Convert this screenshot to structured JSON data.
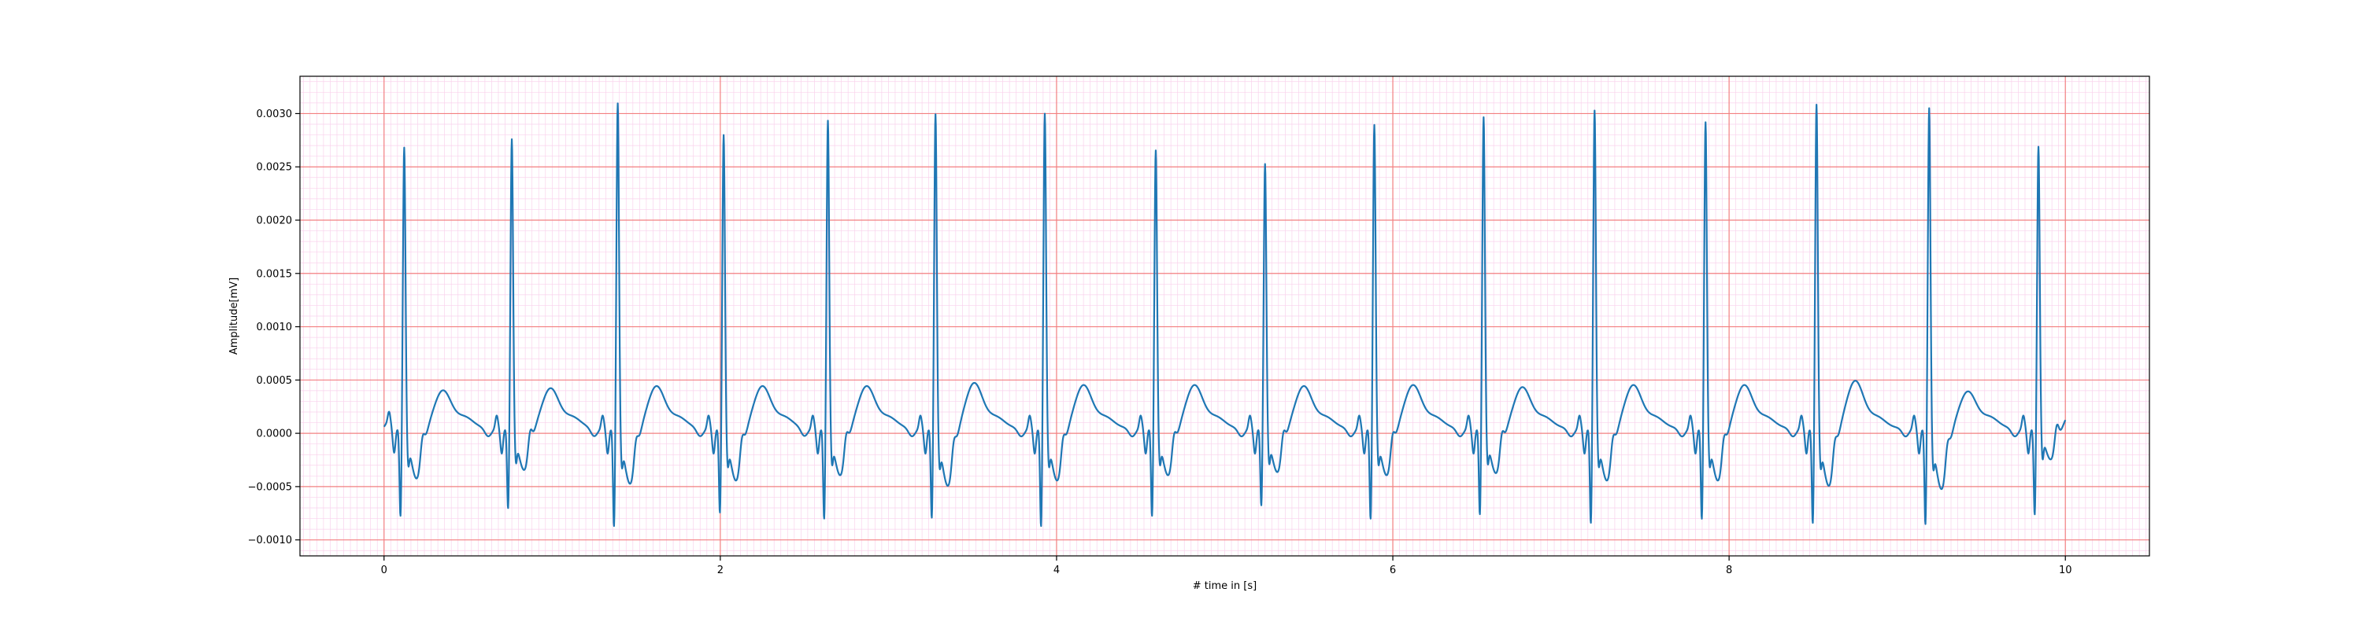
{
  "chart_data": {
    "type": "line",
    "title": "",
    "xlabel": "# time in [s]",
    "ylabel": "Amplitude[mV]",
    "xlim": [
      -0.5,
      10.5
    ],
    "ylim": [
      -0.00115,
      0.00335
    ],
    "xticks": [
      0,
      2,
      4,
      6,
      8,
      10
    ],
    "xtick_labels": [
      "0",
      "2",
      "4",
      "6",
      "8",
      "10"
    ],
    "yticks": [
      -0.001,
      -0.0005,
      0.0,
      0.0005,
      0.001,
      0.0015,
      0.002,
      0.0025,
      0.003
    ],
    "ytick_labels": [
      "−0.0010",
      "−0.0005",
      "0.0000",
      "0.0005",
      "0.0010",
      "0.0015",
      "0.0020",
      "0.0025",
      "0.0030"
    ],
    "grid": {
      "major": true,
      "minor": true,
      "major_x_step": 2,
      "major_y_step": 0.0005,
      "minor_x_step": 0.04,
      "minor_y_step": 0.0001,
      "major_color": "#f28080",
      "minor_color": "#f9d2ec"
    },
    "series": [
      {
        "color": "#1f77b4",
        "x_range": [
          0.0,
          10.0
        ],
        "beats": [
          {
            "r_time": 0.12,
            "r_peak": 0.00268,
            "q_min": -0.00085,
            "s_min": -0.00058,
            "t_peak": 0.00021
          },
          {
            "r_time": 0.76,
            "r_peak": 0.00275,
            "q_min": -0.00078,
            "s_min": -0.0005,
            "t_peak": 0.00023
          },
          {
            "r_time": 1.39,
            "r_peak": 0.0031,
            "q_min": -0.00095,
            "s_min": -0.00063,
            "t_peak": 0.00025
          },
          {
            "r_time": 2.02,
            "r_peak": 0.0028,
            "q_min": -0.00082,
            "s_min": -0.0006,
            "t_peak": 0.00025
          },
          {
            "r_time": 2.64,
            "r_peak": 0.00293,
            "q_min": -0.00088,
            "s_min": -0.00055,
            "t_peak": 0.00025
          },
          {
            "r_time": 3.28,
            "r_peak": 0.003,
            "q_min": -0.00087,
            "s_min": -0.00065,
            "t_peak": 0.00028
          },
          {
            "r_time": 3.93,
            "r_peak": 0.003,
            "q_min": -0.00095,
            "s_min": -0.0006,
            "t_peak": 0.00026
          },
          {
            "r_time": 4.59,
            "r_peak": 0.00265,
            "q_min": -0.00085,
            "s_min": -0.00055,
            "t_peak": 0.00026
          },
          {
            "r_time": 5.24,
            "r_peak": 0.00252,
            "q_min": -0.00075,
            "s_min": -0.00052,
            "t_peak": 0.00025
          },
          {
            "r_time": 5.89,
            "r_peak": 0.00289,
            "q_min": -0.00088,
            "s_min": -0.00055,
            "t_peak": 0.00026
          },
          {
            "r_time": 6.54,
            "r_peak": 0.00296,
            "q_min": -0.00084,
            "s_min": -0.00053,
            "t_peak": 0.00024
          },
          {
            "r_time": 7.2,
            "r_peak": 0.00303,
            "q_min": -0.00092,
            "s_min": -0.0006,
            "t_peak": 0.00026
          },
          {
            "r_time": 7.86,
            "r_peak": 0.00292,
            "q_min": -0.00088,
            "s_min": -0.0006,
            "t_peak": 0.00026
          },
          {
            "r_time": 8.52,
            "r_peak": 0.00309,
            "q_min": -0.00092,
            "s_min": -0.00065,
            "t_peak": 0.0003
          },
          {
            "r_time": 9.19,
            "r_peak": 0.00306,
            "q_min": -0.00093,
            "s_min": -0.00068,
            "t_peak": 0.0002
          },
          {
            "r_time": 9.84,
            "r_peak": 0.00267,
            "q_min": -0.00084,
            "s_min": -0.0004,
            "t_peak": 0.0001
          }
        ]
      }
    ]
  }
}
